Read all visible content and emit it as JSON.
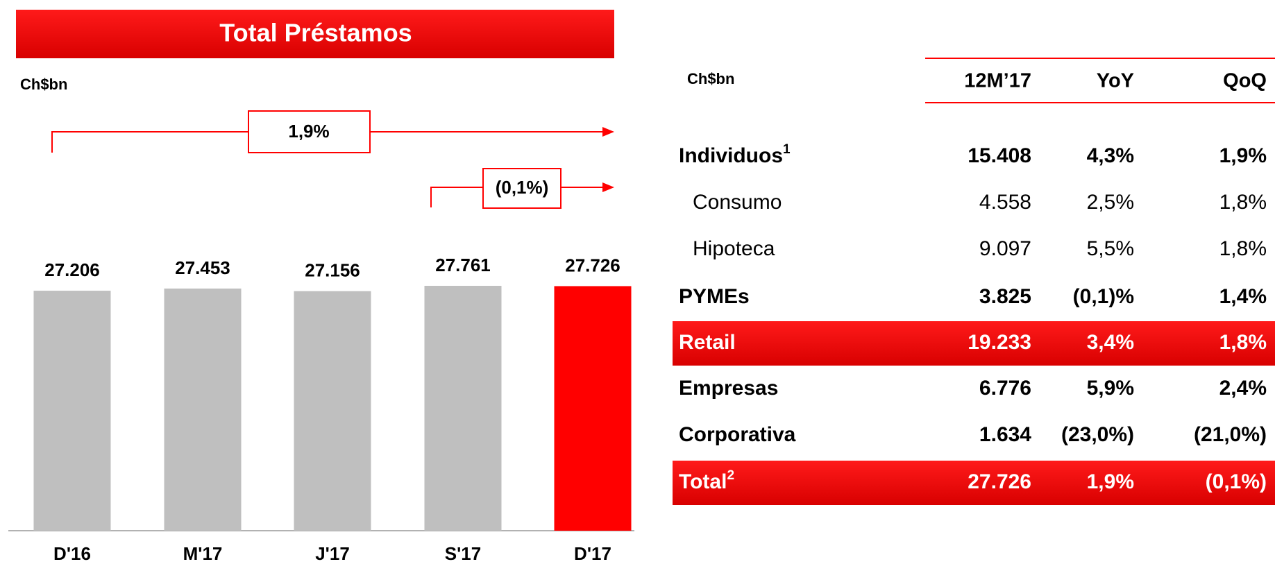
{
  "chart_data": {
    "type": "bar",
    "title": "Total Préstamos",
    "unit": "Ch$bn",
    "categories": [
      "D'16",
      "M'17",
      "J'17",
      "S'17",
      "D'17"
    ],
    "values": [
      27206,
      27453,
      27156,
      27761,
      27726
    ],
    "value_labels": [
      "27.206",
      "27.453",
      "27.156",
      "27.761",
      "27.726"
    ],
    "colors": [
      "#bfbfbf",
      "#bfbfbf",
      "#bfbfbf",
      "#bfbfbf",
      "#ff0000"
    ],
    "annotations": [
      "1,9%",
      "(0,1%)"
    ]
  },
  "table": {
    "header": [
      "Ch$bn",
      "12M’17",
      "YoY",
      "QoQ"
    ],
    "rows": [
      {
        "cells": [
          "Individuos",
          "15.408",
          "4,3%",
          "1,9%"
        ],
        "sup": "1",
        "style": "bold"
      },
      {
        "cells": [
          "Consumo",
          "4.558",
          "2,5%",
          "1,8%"
        ],
        "style": "indent"
      },
      {
        "cells": [
          "Hipoteca",
          "9.097",
          "5,5%",
          "1,8%"
        ],
        "style": "indent"
      },
      {
        "cells": [
          "PYMEs",
          "3.825",
          "(0,1)%",
          "1,4%"
        ],
        "style": "bold"
      },
      {
        "cells": [
          "Retail",
          "19.233",
          "3,4%",
          "1,8%"
        ],
        "style": "highlight"
      },
      {
        "cells": [
          "Empresas",
          "6.776",
          "5,9%",
          "2,4%"
        ],
        "style": "bold"
      },
      {
        "cells": [
          "Corporativa",
          "1.634",
          "(23,0%)",
          "(21,0%)"
        ],
        "style": "bold"
      },
      {
        "cells": [
          "Total",
          "27.726",
          "1,9%",
          "(0,1%)"
        ],
        "sup": "2",
        "style": "highlight"
      }
    ]
  }
}
